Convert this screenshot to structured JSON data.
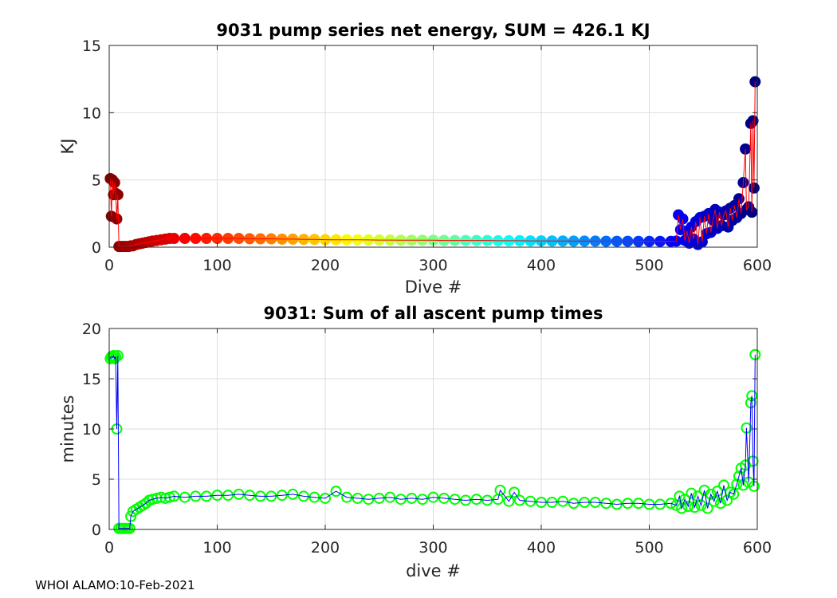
{
  "footer": "WHOI ALAMO:10-Feb-2021",
  "chart_data": [
    {
      "id": "energy",
      "type": "scatter",
      "title": "9031 pump series net energy, SUM = 426.1 KJ",
      "xlabel": "Dive #",
      "ylabel": "KJ",
      "xlim": [
        0,
        600
      ],
      "ylim": [
        0,
        15
      ],
      "xticks": [
        0,
        100,
        200,
        300,
        400,
        500,
        600
      ],
      "yticks": [
        0,
        5,
        10,
        15
      ],
      "grid": true,
      "line_color": "#ff0000",
      "marker_colormap": "jet (reversed, dark red at first dive to dark blue at last dive)",
      "series": [
        {
          "name": "net energy",
          "points": [
            [
              1,
              5.1
            ],
            [
              2,
              2.3
            ],
            [
              3,
              5.0
            ],
            [
              4,
              3.9
            ],
            [
              5,
              4.8
            ],
            [
              6,
              4.0
            ],
            [
              7,
              2.1
            ],
            [
              8,
              3.9
            ],
            [
              9,
              0.05
            ],
            [
              10,
              0.05
            ],
            [
              12,
              0.05
            ],
            [
              14,
              0.05
            ],
            [
              16,
              0.05
            ],
            [
              18,
              0.05
            ],
            [
              20,
              0.1
            ],
            [
              22,
              0.1
            ],
            [
              25,
              0.2
            ],
            [
              28,
              0.25
            ],
            [
              31,
              0.3
            ],
            [
              34,
              0.35
            ],
            [
              37,
              0.4
            ],
            [
              40,
              0.45
            ],
            [
              44,
              0.5
            ],
            [
              48,
              0.55
            ],
            [
              52,
              0.6
            ],
            [
              56,
              0.65
            ],
            [
              60,
              0.65
            ],
            [
              70,
              0.65
            ],
            [
              80,
              0.65
            ],
            [
              90,
              0.65
            ],
            [
              100,
              0.65
            ],
            [
              110,
              0.65
            ],
            [
              120,
              0.65
            ],
            [
              130,
              0.63
            ],
            [
              140,
              0.62
            ],
            [
              150,
              0.62
            ],
            [
              160,
              0.6
            ],
            [
              170,
              0.6
            ],
            [
              180,
              0.58
            ],
            [
              190,
              0.58
            ],
            [
              200,
              0.56
            ],
            [
              210,
              0.55
            ],
            [
              220,
              0.55
            ],
            [
              230,
              0.55
            ],
            [
              240,
              0.54
            ],
            [
              250,
              0.53
            ],
            [
              260,
              0.53
            ],
            [
              270,
              0.52
            ],
            [
              280,
              0.52
            ],
            [
              290,
              0.52
            ],
            [
              300,
              0.52
            ],
            [
              310,
              0.5
            ],
            [
              320,
              0.5
            ],
            [
              330,
              0.5
            ],
            [
              340,
              0.5
            ],
            [
              350,
              0.5
            ],
            [
              360,
              0.48
            ],
            [
              370,
              0.48
            ],
            [
              380,
              0.48
            ],
            [
              390,
              0.47
            ],
            [
              400,
              0.47
            ],
            [
              410,
              0.46
            ],
            [
              420,
              0.46
            ],
            [
              430,
              0.45
            ],
            [
              440,
              0.45
            ],
            [
              450,
              0.45
            ],
            [
              460,
              0.44
            ],
            [
              470,
              0.44
            ],
            [
              480,
              0.44
            ],
            [
              490,
              0.43
            ],
            [
              500,
              0.43
            ],
            [
              510,
              0.43
            ],
            [
              520,
              0.43
            ],
            [
              525,
              0.45
            ],
            [
              527,
              2.4
            ],
            [
              529,
              1.3
            ],
            [
              531,
              2.1
            ],
            [
              533,
              0.5
            ],
            [
              535,
              1.2
            ],
            [
              537,
              0.3
            ],
            [
              539,
              1.5
            ],
            [
              541,
              0.6
            ],
            [
              543,
              1.9
            ],
            [
              545,
              0.2
            ],
            [
              547,
              2.2
            ],
            [
              549,
              0.4
            ],
            [
              551,
              2.3
            ],
            [
              553,
              1.0
            ],
            [
              555,
              2.5
            ],
            [
              557,
              1.1
            ],
            [
              559,
              2.0
            ],
            [
              561,
              2.8
            ],
            [
              563,
              1.4
            ],
            [
              565,
              2.6
            ],
            [
              567,
              1.6
            ],
            [
              569,
              2.4
            ],
            [
              571,
              2.7
            ],
            [
              573,
              1.5
            ],
            [
              575,
              2.9
            ],
            [
              577,
              2.0
            ],
            [
              579,
              3.1
            ],
            [
              581,
              2.2
            ],
            [
              583,
              3.6
            ],
            [
              585,
              2.5
            ],
            [
              587,
              4.8
            ],
            [
              589,
              7.3
            ],
            [
              590,
              2.8
            ],
            [
              592,
              3.0
            ],
            [
              594,
              9.2
            ],
            [
              595,
              2.6
            ],
            [
              596,
              9.4
            ],
            [
              597,
              4.4
            ],
            [
              598,
              12.3
            ]
          ]
        }
      ]
    },
    {
      "id": "pumptime",
      "type": "scatter",
      "title": "9031: Sum of all ascent pump times",
      "xlabel": "dive #",
      "ylabel": "minutes",
      "xlim": [
        0,
        600
      ],
      "ylim": [
        0,
        20
      ],
      "xticks": [
        0,
        100,
        200,
        300,
        400,
        500,
        600
      ],
      "yticks": [
        0,
        5,
        10,
        15,
        20
      ],
      "grid": true,
      "line_color": "#0000ff",
      "marker_color": "#00ff00",
      "series": [
        {
          "name": "ascent pump time",
          "points": [
            [
              1,
              17.0
            ],
            [
              2,
              17.2
            ],
            [
              3,
              17.1
            ],
            [
              4,
              17.3
            ],
            [
              5,
              17.0
            ],
            [
              6,
              17.2
            ],
            [
              7,
              10.0
            ],
            [
              8,
              17.3
            ],
            [
              9,
              0.1
            ],
            [
              11,
              0.1
            ],
            [
              13,
              0.1
            ],
            [
              15,
              0.1
            ],
            [
              17,
              0.1
            ],
            [
              19,
              0.1
            ],
            [
              20,
              1.3
            ],
            [
              22,
              1.8
            ],
            [
              25,
              2.0
            ],
            [
              28,
              2.2
            ],
            [
              31,
              2.4
            ],
            [
              34,
              2.6
            ],
            [
              37,
              2.9
            ],
            [
              40,
              3.0
            ],
            [
              44,
              3.1
            ],
            [
              48,
              3.2
            ],
            [
              52,
              3.1
            ],
            [
              56,
              3.2
            ],
            [
              60,
              3.3
            ],
            [
              70,
              3.2
            ],
            [
              80,
              3.3
            ],
            [
              90,
              3.3
            ],
            [
              100,
              3.4
            ],
            [
              110,
              3.4
            ],
            [
              120,
              3.5
            ],
            [
              130,
              3.4
            ],
            [
              140,
              3.3
            ],
            [
              150,
              3.3
            ],
            [
              160,
              3.4
            ],
            [
              170,
              3.5
            ],
            [
              180,
              3.3
            ],
            [
              190,
              3.2
            ],
            [
              200,
              3.1
            ],
            [
              210,
              3.8
            ],
            [
              220,
              3.2
            ],
            [
              230,
              3.1
            ],
            [
              240,
              3.0
            ],
            [
              250,
              3.1
            ],
            [
              260,
              3.2
            ],
            [
              270,
              3.0
            ],
            [
              280,
              3.1
            ],
            [
              290,
              3.0
            ],
            [
              300,
              3.2
            ],
            [
              310,
              3.1
            ],
            [
              320,
              3.0
            ],
            [
              330,
              2.9
            ],
            [
              340,
              3.0
            ],
            [
              350,
              2.9
            ],
            [
              360,
              3.0
            ],
            [
              362,
              3.9
            ],
            [
              370,
              2.8
            ],
            [
              375,
              3.7
            ],
            [
              380,
              2.9
            ],
            [
              390,
              2.8
            ],
            [
              400,
              2.7
            ],
            [
              410,
              2.7
            ],
            [
              420,
              2.8
            ],
            [
              430,
              2.6
            ],
            [
              440,
              2.7
            ],
            [
              450,
              2.7
            ],
            [
              460,
              2.6
            ],
            [
              470,
              2.5
            ],
            [
              480,
              2.6
            ],
            [
              490,
              2.6
            ],
            [
              500,
              2.5
            ],
            [
              510,
              2.5
            ],
            [
              520,
              2.6
            ],
            [
              525,
              2.4
            ],
            [
              528,
              3.3
            ],
            [
              530,
              2.1
            ],
            [
              533,
              3.0
            ],
            [
              536,
              2.3
            ],
            [
              539,
              3.6
            ],
            [
              542,
              2.2
            ],
            [
              545,
              3.3
            ],
            [
              548,
              2.4
            ],
            [
              551,
              3.9
            ],
            [
              554,
              2.1
            ],
            [
              557,
              3.5
            ],
            [
              560,
              2.8
            ],
            [
              563,
              3.8
            ],
            [
              566,
              2.6
            ],
            [
              569,
              4.4
            ],
            [
              572,
              2.9
            ],
            [
              575,
              3.7
            ],
            [
              578,
              3.5
            ],
            [
              581,
              4.5
            ],
            [
              583,
              5.3
            ],
            [
              585,
              6.1
            ],
            [
              587,
              4.4
            ],
            [
              589,
              6.4
            ],
            [
              590,
              10.1
            ],
            [
              592,
              4.7
            ],
            [
              594,
              12.6
            ],
            [
              595,
              13.3
            ],
            [
              596,
              6.8
            ],
            [
              597,
              4.3
            ],
            [
              598,
              17.4
            ]
          ]
        }
      ]
    }
  ]
}
